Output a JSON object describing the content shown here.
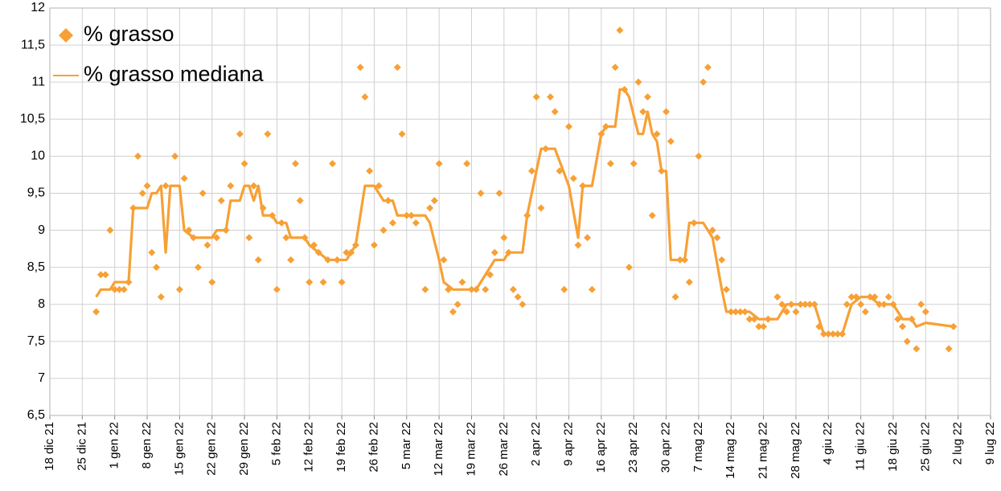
{
  "chart_data": {
    "type": "scatter",
    "legend": "upper left",
    "grid": true,
    "xlim": [
      "2021-12-18",
      "2022-07-09"
    ],
    "ylim": [
      6.5,
      12
    ],
    "yticks": [
      {
        "value": 6.5,
        "label": "6,5"
      },
      7,
      {
        "value": 7.5,
        "label": "7,5"
      },
      8,
      {
        "value": 8.5,
        "label": "8,5"
      },
      9,
      {
        "value": 9.5,
        "label": "9,5"
      },
      10,
      {
        "value": 10.5,
        "label": "10,5"
      },
      11,
      {
        "value": 11.5,
        "label": "11,5"
      },
      12
    ],
    "xticks": [
      {
        "value": "2021-12-18",
        "label": "18 dic 21"
      },
      {
        "value": "2021-12-25",
        "label": "25 dic 21"
      },
      {
        "value": "2022-01-01",
        "label": "1 gen 22"
      },
      {
        "value": "2022-01-08",
        "label": "8 gen 22"
      },
      {
        "value": "2022-01-15",
        "label": "15 gen 22"
      },
      {
        "value": "2022-01-22",
        "label": "22 gen 22"
      },
      {
        "value": "2022-01-29",
        "label": "29 gen 22"
      },
      {
        "value": "2022-02-05",
        "label": "5 feb 22"
      },
      {
        "value": "2022-02-12",
        "label": "12 feb 22"
      },
      {
        "value": "2022-02-19",
        "label": "19 feb 22"
      },
      {
        "value": "2022-02-26",
        "label": "26 feb 22"
      },
      {
        "value": "2022-03-05",
        "label": "5 mar 22"
      },
      {
        "value": "2022-03-12",
        "label": "12 mar 22"
      },
      {
        "value": "2022-03-19",
        "label": "19 mar 22"
      },
      {
        "value": "2022-03-26",
        "label": "26 mar 22"
      },
      {
        "value": "2022-04-02",
        "label": "2 apr 22"
      },
      {
        "value": "2022-04-09",
        "label": "9 apr 22"
      },
      {
        "value": "2022-04-16",
        "label": "16 apr 22"
      },
      {
        "value": "2022-04-23",
        "label": "23 apr 22"
      },
      {
        "value": "2022-04-30",
        "label": "30 apr 22"
      },
      {
        "value": "2022-05-07",
        "label": "7 mag 22"
      },
      {
        "value": "2022-05-14",
        "label": "14 mag 22"
      },
      {
        "value": "2022-05-21",
        "label": "21 mag 22"
      },
      {
        "value": "2022-05-28",
        "label": "28 mag 22"
      },
      {
        "value": "2022-06-04",
        "label": "4 giu 22"
      },
      {
        "value": "2022-06-11",
        "label": "11 giu 22"
      },
      {
        "value": "2022-06-18",
        "label": "18 giu 22"
      },
      {
        "value": "2022-06-25",
        "label": "25 giu 22"
      },
      {
        "value": "2022-07-02",
        "label": "2 lug 22"
      },
      {
        "value": "2022-07-09",
        "label": "9 lug 22"
      }
    ],
    "series": [
      {
        "name": "% grasso",
        "kind": "scatter",
        "color": "#f7a035",
        "x": [
          "2021-12-28",
          "2021-12-29",
          "2021-12-30",
          "2021-12-31",
          "2022-01-01",
          "2022-01-02",
          "2022-01-03",
          "2022-01-04",
          "2022-01-05",
          "2022-01-06",
          "2022-01-07",
          "2022-01-08",
          "2022-01-09",
          "2022-01-10",
          "2022-01-11",
          "2022-01-12",
          "2022-01-14",
          "2022-01-15",
          "2022-01-16",
          "2022-01-17",
          "2022-01-18",
          "2022-01-19",
          "2022-01-20",
          "2022-01-21",
          "2022-01-22",
          "2022-01-23",
          "2022-01-24",
          "2022-01-25",
          "2022-01-26",
          "2022-01-28",
          "2022-01-29",
          "2022-01-30",
          "2022-01-31",
          "2022-02-01",
          "2022-02-02",
          "2022-02-03",
          "2022-02-04",
          "2022-02-05",
          "2022-02-06",
          "2022-02-07",
          "2022-02-08",
          "2022-02-09",
          "2022-02-10",
          "2022-02-11",
          "2022-02-12",
          "2022-02-13",
          "2022-02-14",
          "2022-02-15",
          "2022-02-16",
          "2022-02-17",
          "2022-02-18",
          "2022-02-19",
          "2022-02-20",
          "2022-02-21",
          "2022-02-22",
          "2022-02-23",
          "2022-02-24",
          "2022-02-25",
          "2022-02-26",
          "2022-02-27",
          "2022-02-28",
          "2022-03-01",
          "2022-03-02",
          "2022-03-03",
          "2022-03-04",
          "2022-03-05",
          "2022-03-06",
          "2022-03-07",
          "2022-03-09",
          "2022-03-10",
          "2022-03-11",
          "2022-03-12",
          "2022-03-13",
          "2022-03-14",
          "2022-03-15",
          "2022-03-16",
          "2022-03-17",
          "2022-03-18",
          "2022-03-19",
          "2022-03-20",
          "2022-03-21",
          "2022-03-22",
          "2022-03-23",
          "2022-03-24",
          "2022-03-25",
          "2022-03-26",
          "2022-03-27",
          "2022-03-28",
          "2022-03-29",
          "2022-03-30",
          "2022-03-31",
          "2022-04-01",
          "2022-04-02",
          "2022-04-03",
          "2022-04-04",
          "2022-04-05",
          "2022-04-06",
          "2022-04-07",
          "2022-04-08",
          "2022-04-09",
          "2022-04-10",
          "2022-04-11",
          "2022-04-12",
          "2022-04-13",
          "2022-04-14",
          "2022-04-16",
          "2022-04-17",
          "2022-04-18",
          "2022-04-19",
          "2022-04-20",
          "2022-04-21",
          "2022-04-22",
          "2022-04-23",
          "2022-04-24",
          "2022-04-25",
          "2022-04-26",
          "2022-04-27",
          "2022-04-28",
          "2022-04-29",
          "2022-04-30",
          "2022-05-01",
          "2022-05-02",
          "2022-05-03",
          "2022-05-04",
          "2022-05-05",
          "2022-05-06",
          "2022-05-07",
          "2022-05-08",
          "2022-05-09",
          "2022-05-10",
          "2022-05-11",
          "2022-05-12",
          "2022-05-13",
          "2022-05-14",
          "2022-05-15",
          "2022-05-16",
          "2022-05-17",
          "2022-05-18",
          "2022-05-19",
          "2022-05-20",
          "2022-05-21",
          "2022-05-22",
          "2022-05-24",
          "2022-05-25",
          "2022-05-26",
          "2022-05-27",
          "2022-05-28",
          "2022-05-29",
          "2022-05-30",
          "2022-05-31",
          "2022-06-01",
          "2022-06-02",
          "2022-06-03",
          "2022-06-04",
          "2022-06-05",
          "2022-06-06",
          "2022-06-07",
          "2022-06-08",
          "2022-06-09",
          "2022-06-10",
          "2022-06-11",
          "2022-06-12",
          "2022-06-13",
          "2022-06-14",
          "2022-06-15",
          "2022-06-16",
          "2022-06-17",
          "2022-06-18",
          "2022-06-19",
          "2022-06-20",
          "2022-06-21",
          "2022-06-22",
          "2022-06-23",
          "2022-06-24",
          "2022-06-25",
          "2022-06-30",
          "2022-07-01"
        ],
        "values": [
          7.9,
          8.4,
          8.4,
          9.0,
          8.2,
          8.2,
          8.2,
          8.3,
          9.3,
          10.0,
          9.5,
          9.6,
          8.7,
          8.5,
          8.1,
          9.6,
          10.0,
          8.2,
          9.7,
          9.0,
          8.9,
          8.5,
          9.5,
          8.8,
          8.3,
          8.9,
          9.4,
          9.0,
          9.6,
          10.3,
          9.9,
          8.9,
          9.6,
          8.6,
          9.3,
          10.3,
          9.2,
          8.2,
          9.1,
          8.9,
          8.6,
          9.9,
          9.4,
          8.9,
          8.3,
          8.8,
          8.7,
          8.3,
          8.6,
          9.9,
          8.6,
          8.3,
          8.7,
          8.7,
          8.8,
          11.2,
          10.8,
          9.8,
          8.8,
          9.6,
          9.0,
          9.4,
          9.1,
          11.2,
          10.3,
          9.2,
          9.2,
          9.1,
          8.2,
          9.3,
          9.4,
          9.9,
          8.6,
          8.2,
          7.9,
          8.0,
          8.3,
          9.9,
          8.2,
          8.2,
          9.5,
          8.2,
          8.4,
          8.7,
          9.5,
          8.9,
          8.7,
          8.2,
          8.1,
          8.0,
          9.2,
          9.8,
          10.8,
          9.3,
          10.1,
          10.8,
          10.6,
          9.8,
          8.2,
          10.4,
          9.7,
          8.8,
          9.6,
          8.9,
          8.2,
          10.3,
          10.4,
          9.9,
          11.2,
          11.7,
          10.9,
          8.5,
          9.9,
          11.0,
          10.6,
          10.8,
          9.2,
          10.3,
          9.8,
          10.6,
          10.2,
          8.1,
          8.6,
          8.6,
          8.3,
          9.1,
          10.0,
          11.0,
          11.2,
          9.0,
          8.9,
          8.6,
          8.2,
          7.9,
          7.9,
          7.9,
          7.9,
          7.8,
          7.8,
          7.7,
          7.7,
          7.8,
          8.1,
          8.0,
          7.9,
          8.0,
          7.9,
          8.0,
          8.0,
          8.0,
          8.0,
          7.7,
          7.6,
          7.6,
          7.6,
          7.6,
          7.6,
          8.0,
          8.1,
          8.1,
          8.0,
          7.9,
          8.1,
          8.1,
          8.0,
          8.0,
          8.1,
          8.0,
          7.8,
          7.7,
          7.5,
          7.8,
          7.4,
          8.0,
          7.9,
          7.4,
          7.7
        ]
      },
      {
        "name": "% grasso mediana",
        "kind": "line",
        "color": "#f7a035",
        "x": [
          "2021-12-28",
          "2021-12-29",
          "2021-12-31",
          "2022-01-01",
          "2022-01-04",
          "2022-01-05",
          "2022-01-08",
          "2022-01-09",
          "2022-01-10",
          "2022-01-11",
          "2022-01-12",
          "2022-01-13",
          "2022-01-15",
          "2022-01-16",
          "2022-01-18",
          "2022-01-22",
          "2022-01-23",
          "2022-01-25",
          "2022-01-26",
          "2022-01-28",
          "2022-01-29",
          "2022-01-30",
          "2022-01-31",
          "2022-02-01",
          "2022-02-02",
          "2022-02-04",
          "2022-02-05",
          "2022-02-07",
          "2022-02-08",
          "2022-02-11",
          "2022-02-12",
          "2022-02-14",
          "2022-02-16",
          "2022-02-20",
          "2022-02-22",
          "2022-02-24",
          "2022-02-26",
          "2022-02-28",
          "2022-03-02",
          "2022-03-03",
          "2022-03-09",
          "2022-03-10",
          "2022-03-12",
          "2022-03-13",
          "2022-03-15",
          "2022-03-20",
          "2022-03-22",
          "2022-03-24",
          "2022-03-26",
          "2022-03-27",
          "2022-03-30",
          "2022-03-31",
          "2022-04-03",
          "2022-04-06",
          "2022-04-09",
          "2022-04-11",
          "2022-04-12",
          "2022-04-14",
          "2022-04-16",
          "2022-04-17",
          "2022-04-19",
          "2022-04-20",
          "2022-04-21",
          "2022-04-22",
          "2022-04-24",
          "2022-04-25",
          "2022-04-26",
          "2022-04-27",
          "2022-04-28",
          "2022-04-29",
          "2022-04-30",
          "2022-05-01",
          "2022-05-04",
          "2022-05-05",
          "2022-05-08",
          "2022-05-10",
          "2022-05-12",
          "2022-05-13",
          "2022-05-18",
          "2022-05-20",
          "2022-05-24",
          "2022-05-26",
          "2022-06-01",
          "2022-06-03",
          "2022-06-07",
          "2022-06-09",
          "2022-06-11",
          "2022-06-13",
          "2022-06-15",
          "2022-06-18",
          "2022-06-20",
          "2022-06-22",
          "2022-06-23",
          "2022-06-25",
          "2022-07-01"
        ],
        "values": [
          8.1,
          8.2,
          8.2,
          8.3,
          8.3,
          9.3,
          9.3,
          9.5,
          9.5,
          9.6,
          8.7,
          9.6,
          9.6,
          9.0,
          8.9,
          8.9,
          9.0,
          9.0,
          9.4,
          9.4,
          9.6,
          9.6,
          9.4,
          9.6,
          9.2,
          9.2,
          9.1,
          9.1,
          8.9,
          8.9,
          8.8,
          8.7,
          8.6,
          8.6,
          8.8,
          9.6,
          9.6,
          9.4,
          9.4,
          9.2,
          9.2,
          9.1,
          8.6,
          8.3,
          8.2,
          8.2,
          8.4,
          8.6,
          8.6,
          8.7,
          8.7,
          9.2,
          10.1,
          10.1,
          9.6,
          8.9,
          9.6,
          9.6,
          10.3,
          10.4,
          10.4,
          10.9,
          10.9,
          10.8,
          10.3,
          10.3,
          10.6,
          10.3,
          10.2,
          9.8,
          9.8,
          8.6,
          8.6,
          9.1,
          9.1,
          8.9,
          8.2,
          7.9,
          7.9,
          7.8,
          7.8,
          8.0,
          8.0,
          7.6,
          7.6,
          8.0,
          8.1,
          8.1,
          8.0,
          8.0,
          7.8,
          7.8,
          7.7,
          7.75,
          7.7
        ]
      }
    ]
  }
}
